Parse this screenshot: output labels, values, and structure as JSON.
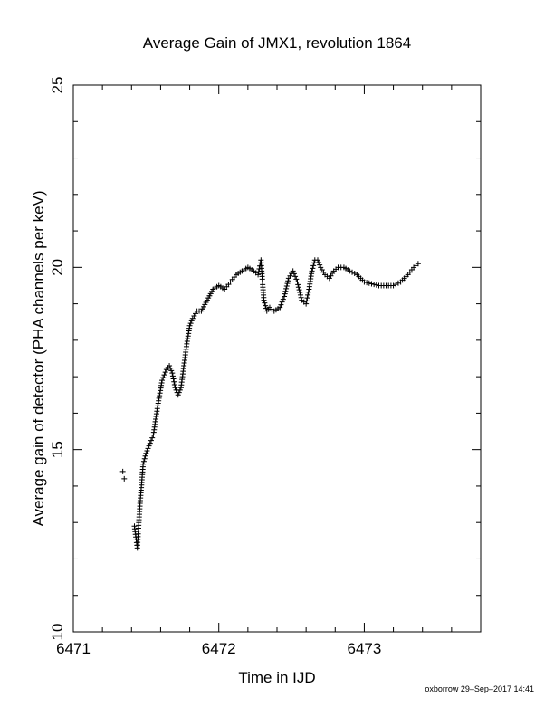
{
  "chart_data": {
    "type": "scatter",
    "title": "Average Gain of JMX1, revolution 1864",
    "xlabel": "Time in IJD",
    "ylabel": "Average gain of detector (PHA channels per keV)",
    "xlim": [
      6471,
      6473.8
    ],
    "ylim": [
      10,
      25
    ],
    "x_ticks": [
      "6471",
      "6472",
      "6473"
    ],
    "y_ticks": [
      "10",
      "15",
      "20",
      "25"
    ],
    "marker": "plus",
    "color": "#000000",
    "grid": false,
    "series": [
      {
        "x": [
          6471.34,
          6471.35,
          6471.42,
          6471.43,
          6471.44,
          6471.45,
          6471.46,
          6471.47,
          6471.48,
          6471.5,
          6471.52,
          6471.55,
          6471.58,
          6471.61,
          6471.64,
          6471.66,
          6471.68,
          6471.7,
          6471.72,
          6471.74,
          6471.76,
          6471.78,
          6471.8,
          6471.82,
          6471.85,
          6471.88,
          6471.92,
          6471.96,
          6472.0,
          6472.04,
          6472.08,
          6472.12,
          6472.16,
          6472.2,
          6472.24,
          6472.27,
          6472.29,
          6472.3,
          6472.31,
          6472.33,
          6472.35,
          6472.38,
          6472.42,
          6472.45,
          6472.48,
          6472.51,
          6472.54,
          6472.57,
          6472.6,
          6472.62,
          6472.64,
          6472.66,
          6472.68,
          6472.7,
          6472.73,
          6472.76,
          6472.79,
          6472.82,
          6472.86,
          6472.9,
          6472.95,
          6473.0,
          6473.05,
          6473.1,
          6473.15,
          6473.2,
          6473.25,
          6473.3,
          6473.34,
          6473.37
        ],
        "y": [
          14.4,
          14.2,
          12.9,
          12.6,
          12.3,
          13.0,
          13.6,
          14.1,
          14.6,
          14.9,
          15.1,
          15.4,
          16.2,
          16.9,
          17.2,
          17.3,
          17.1,
          16.7,
          16.5,
          16.7,
          17.3,
          17.9,
          18.4,
          18.6,
          18.8,
          18.8,
          19.1,
          19.4,
          19.5,
          19.4,
          19.6,
          19.8,
          19.9,
          20.0,
          19.9,
          19.8,
          20.2,
          19.6,
          19.1,
          18.8,
          18.9,
          18.8,
          18.9,
          19.2,
          19.7,
          19.9,
          19.6,
          19.1,
          19.0,
          19.4,
          19.9,
          20.2,
          20.2,
          20.0,
          19.8,
          19.7,
          19.9,
          20.0,
          20.0,
          19.9,
          19.8,
          19.6,
          19.55,
          19.5,
          19.5,
          19.5,
          19.6,
          19.8,
          20.0,
          20.1
        ]
      }
    ]
  },
  "footer_text": "oxborrow 29–Sep–2017 14:41"
}
